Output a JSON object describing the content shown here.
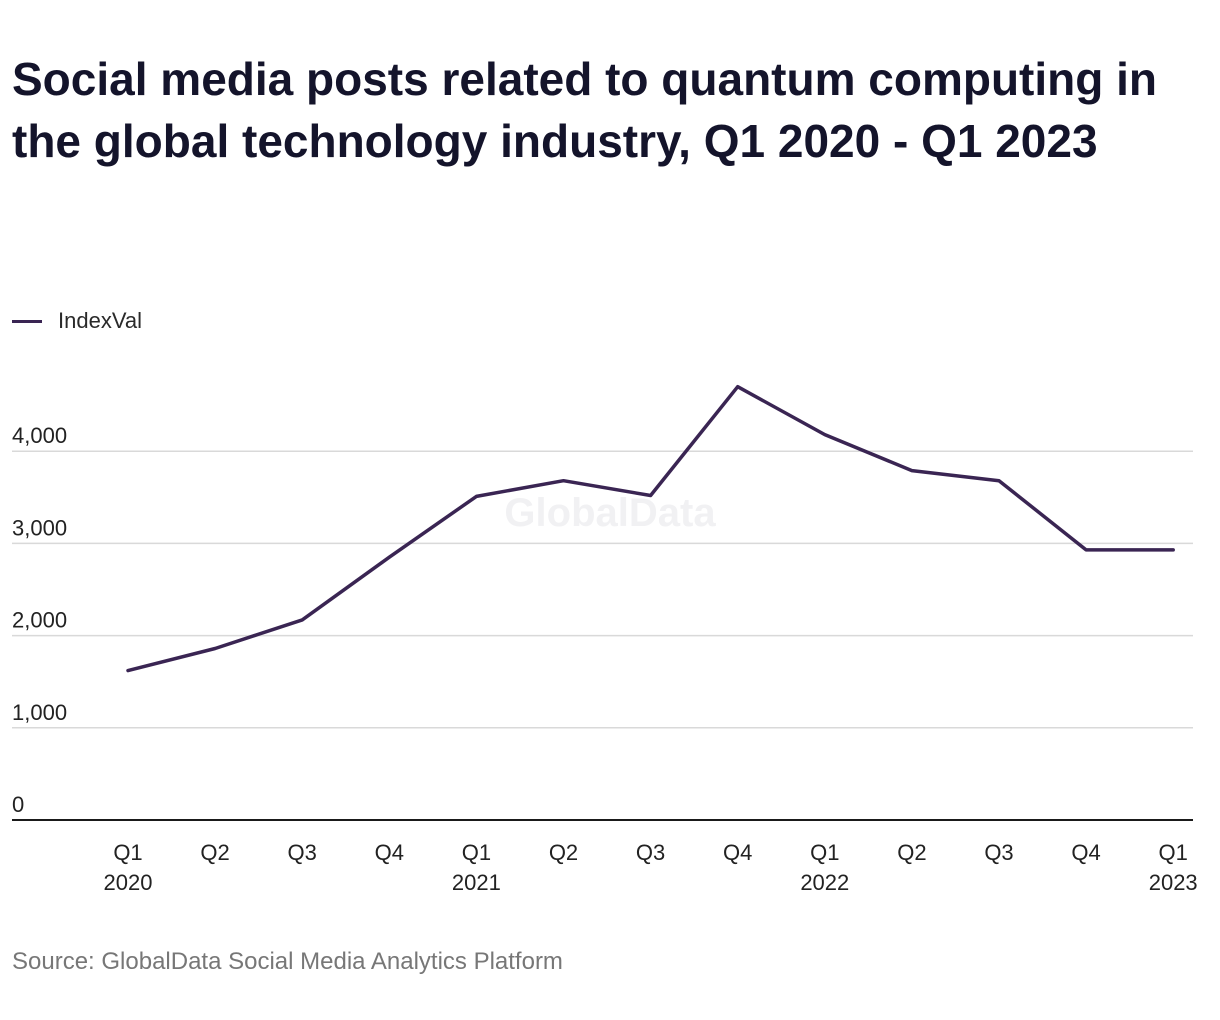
{
  "chart_data": {
    "type": "line",
    "title": "Social media posts related to quantum computing in the global technology industry, Q1 2020 - Q1 2023",
    "categories": [
      [
        "Q1",
        "2020"
      ],
      [
        "Q2"
      ],
      [
        "Q3"
      ],
      [
        "Q4"
      ],
      [
        "Q1",
        "2021"
      ],
      [
        "Q2"
      ],
      [
        "Q3"
      ],
      [
        "Q4"
      ],
      [
        "Q1",
        "2022"
      ],
      [
        "Q2"
      ],
      [
        "Q3"
      ],
      [
        "Q4"
      ],
      [
        "Q1",
        "2023"
      ]
    ],
    "series": [
      {
        "name": "IndexVal",
        "color": "#3a2553",
        "values": [
          1620,
          1860,
          2170,
          2850,
          3510,
          3680,
          3520,
          4700,
          4180,
          3790,
          3680,
          2930,
          2930
        ]
      }
    ],
    "ylim": [
      0,
      5000
    ],
    "yticks": [
      0,
      1000,
      2000,
      3000,
      4000
    ],
    "ytick_labels": [
      "0",
      "1,000",
      "2,000",
      "3,000",
      "4,000"
    ],
    "grid": true,
    "legend_position": "top-left",
    "watermark": "GlobalData",
    "source": "Source: GlobalData Social Media Analytics Platform"
  }
}
